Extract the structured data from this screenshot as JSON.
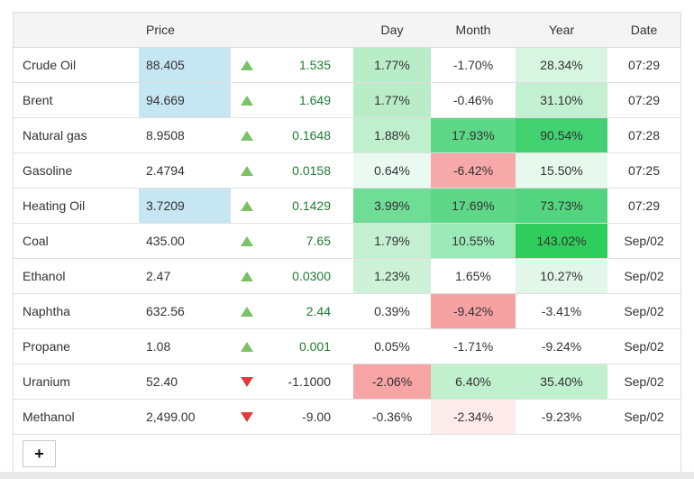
{
  "palette": {
    "header_bg": "#f4f4f4",
    "panel_border": "#dcdcdc",
    "price_highlight_blue": "#c7e6f3",
    "arrow_up": "#7ac168",
    "arrow_down": "#de3b3b",
    "change_positive_text": "#1e7d32",
    "change_negative_text": "#333333",
    "cell_text": "#333333",
    "bottom_strip": "#e9e9e9"
  },
  "table": {
    "headers": {
      "price": "Price",
      "day": "Day",
      "month": "Month",
      "year": "Year",
      "date": "Date"
    },
    "rows": [
      {
        "name": "Crude Oil",
        "price": "88.405",
        "price_bg": "#c7e6f3",
        "direction": "up",
        "change": "1.535",
        "day": "1.77%",
        "day_bg": "#b9edc8",
        "month": "-1.70%",
        "month_bg": "",
        "year": "28.34%",
        "year_bg": "#d8f5e1",
        "date": "07:29"
      },
      {
        "name": "Brent",
        "price": "94.669",
        "price_bg": "#c7e6f3",
        "direction": "up",
        "change": "1.649",
        "day": "1.77%",
        "day_bg": "#b9edc8",
        "month": "-0.46%",
        "month_bg": "",
        "year": "31.10%",
        "year_bg": "#c3f0d1",
        "date": "07:29"
      },
      {
        "name": "Natural gas",
        "price": "8.9508",
        "price_bg": "",
        "direction": "up",
        "change": "0.1648",
        "day": "1.88%",
        "day_bg": "#c0efcd",
        "month": "17.93%",
        "month_bg": "#5dd887",
        "year": "90.54%",
        "year_bg": "#43d272",
        "date": "07:28"
      },
      {
        "name": "Gasoline",
        "price": "2.4794",
        "price_bg": "",
        "direction": "up",
        "change": "0.0158",
        "day": "0.64%",
        "day_bg": "#eafaf0",
        "month": "-6.42%",
        "month_bg": "#f7a8a8",
        "year": "15.50%",
        "year_bg": "#e7f8ed",
        "date": "07:25"
      },
      {
        "name": "Heating Oil",
        "price": "3.7209",
        "price_bg": "#c7e6f3",
        "direction": "up",
        "change": "0.1429",
        "day": "3.99%",
        "day_bg": "#70dd96",
        "month": "17.69%",
        "month_bg": "#5ed887",
        "year": "73.73%",
        "year_bg": "#52d57e",
        "date": "07:29"
      },
      {
        "name": "Coal",
        "price": "435.00",
        "price_bg": "",
        "direction": "up",
        "change": "7.65",
        "day": "1.79%",
        "day_bg": "#c4f0d1",
        "month": "10.55%",
        "month_bg": "#9ce9b8",
        "year": "143.02%",
        "year_bg": "#2ecd5c",
        "date": "Sep/02"
      },
      {
        "name": "Ethanol",
        "price": "2.47",
        "price_bg": "",
        "direction": "up",
        "change": "0.0300",
        "day": "1.23%",
        "day_bg": "#cdf2d8",
        "month": "1.65%",
        "month_bg": "",
        "year": "10.27%",
        "year_bg": "#e2f7e9",
        "date": "Sep/02"
      },
      {
        "name": "Naphtha",
        "price": "632.56",
        "price_bg": "",
        "direction": "up",
        "change": "2.44",
        "day": "0.39%",
        "day_bg": "",
        "month": "-9.42%",
        "month_bg": "#f7a2a2",
        "year": "-3.41%",
        "year_bg": "",
        "date": "Sep/02"
      },
      {
        "name": "Propane",
        "price": "1.08",
        "price_bg": "",
        "direction": "up",
        "change": "0.001",
        "day": "0.05%",
        "day_bg": "",
        "month": "-1.71%",
        "month_bg": "",
        "year": "-9.24%",
        "year_bg": "",
        "date": "Sep/02"
      },
      {
        "name": "Uranium",
        "price": "52.40",
        "price_bg": "",
        "direction": "down",
        "change": "-1.1000",
        "day": "-2.06%",
        "day_bg": "#f7a4a4",
        "month": "6.40%",
        "month_bg": "#c0f0ce",
        "year": "35.40%",
        "year_bg": "#c0f0ce",
        "date": "Sep/02"
      },
      {
        "name": "Methanol",
        "price": "2,499.00",
        "price_bg": "",
        "direction": "down",
        "change": "-9.00",
        "day": "-0.36%",
        "day_bg": "",
        "month": "-2.34%",
        "month_bg": "#fdeaea",
        "year": "-9.23%",
        "year_bg": "",
        "date": "Sep/02"
      }
    ],
    "add_button_label": "+"
  }
}
